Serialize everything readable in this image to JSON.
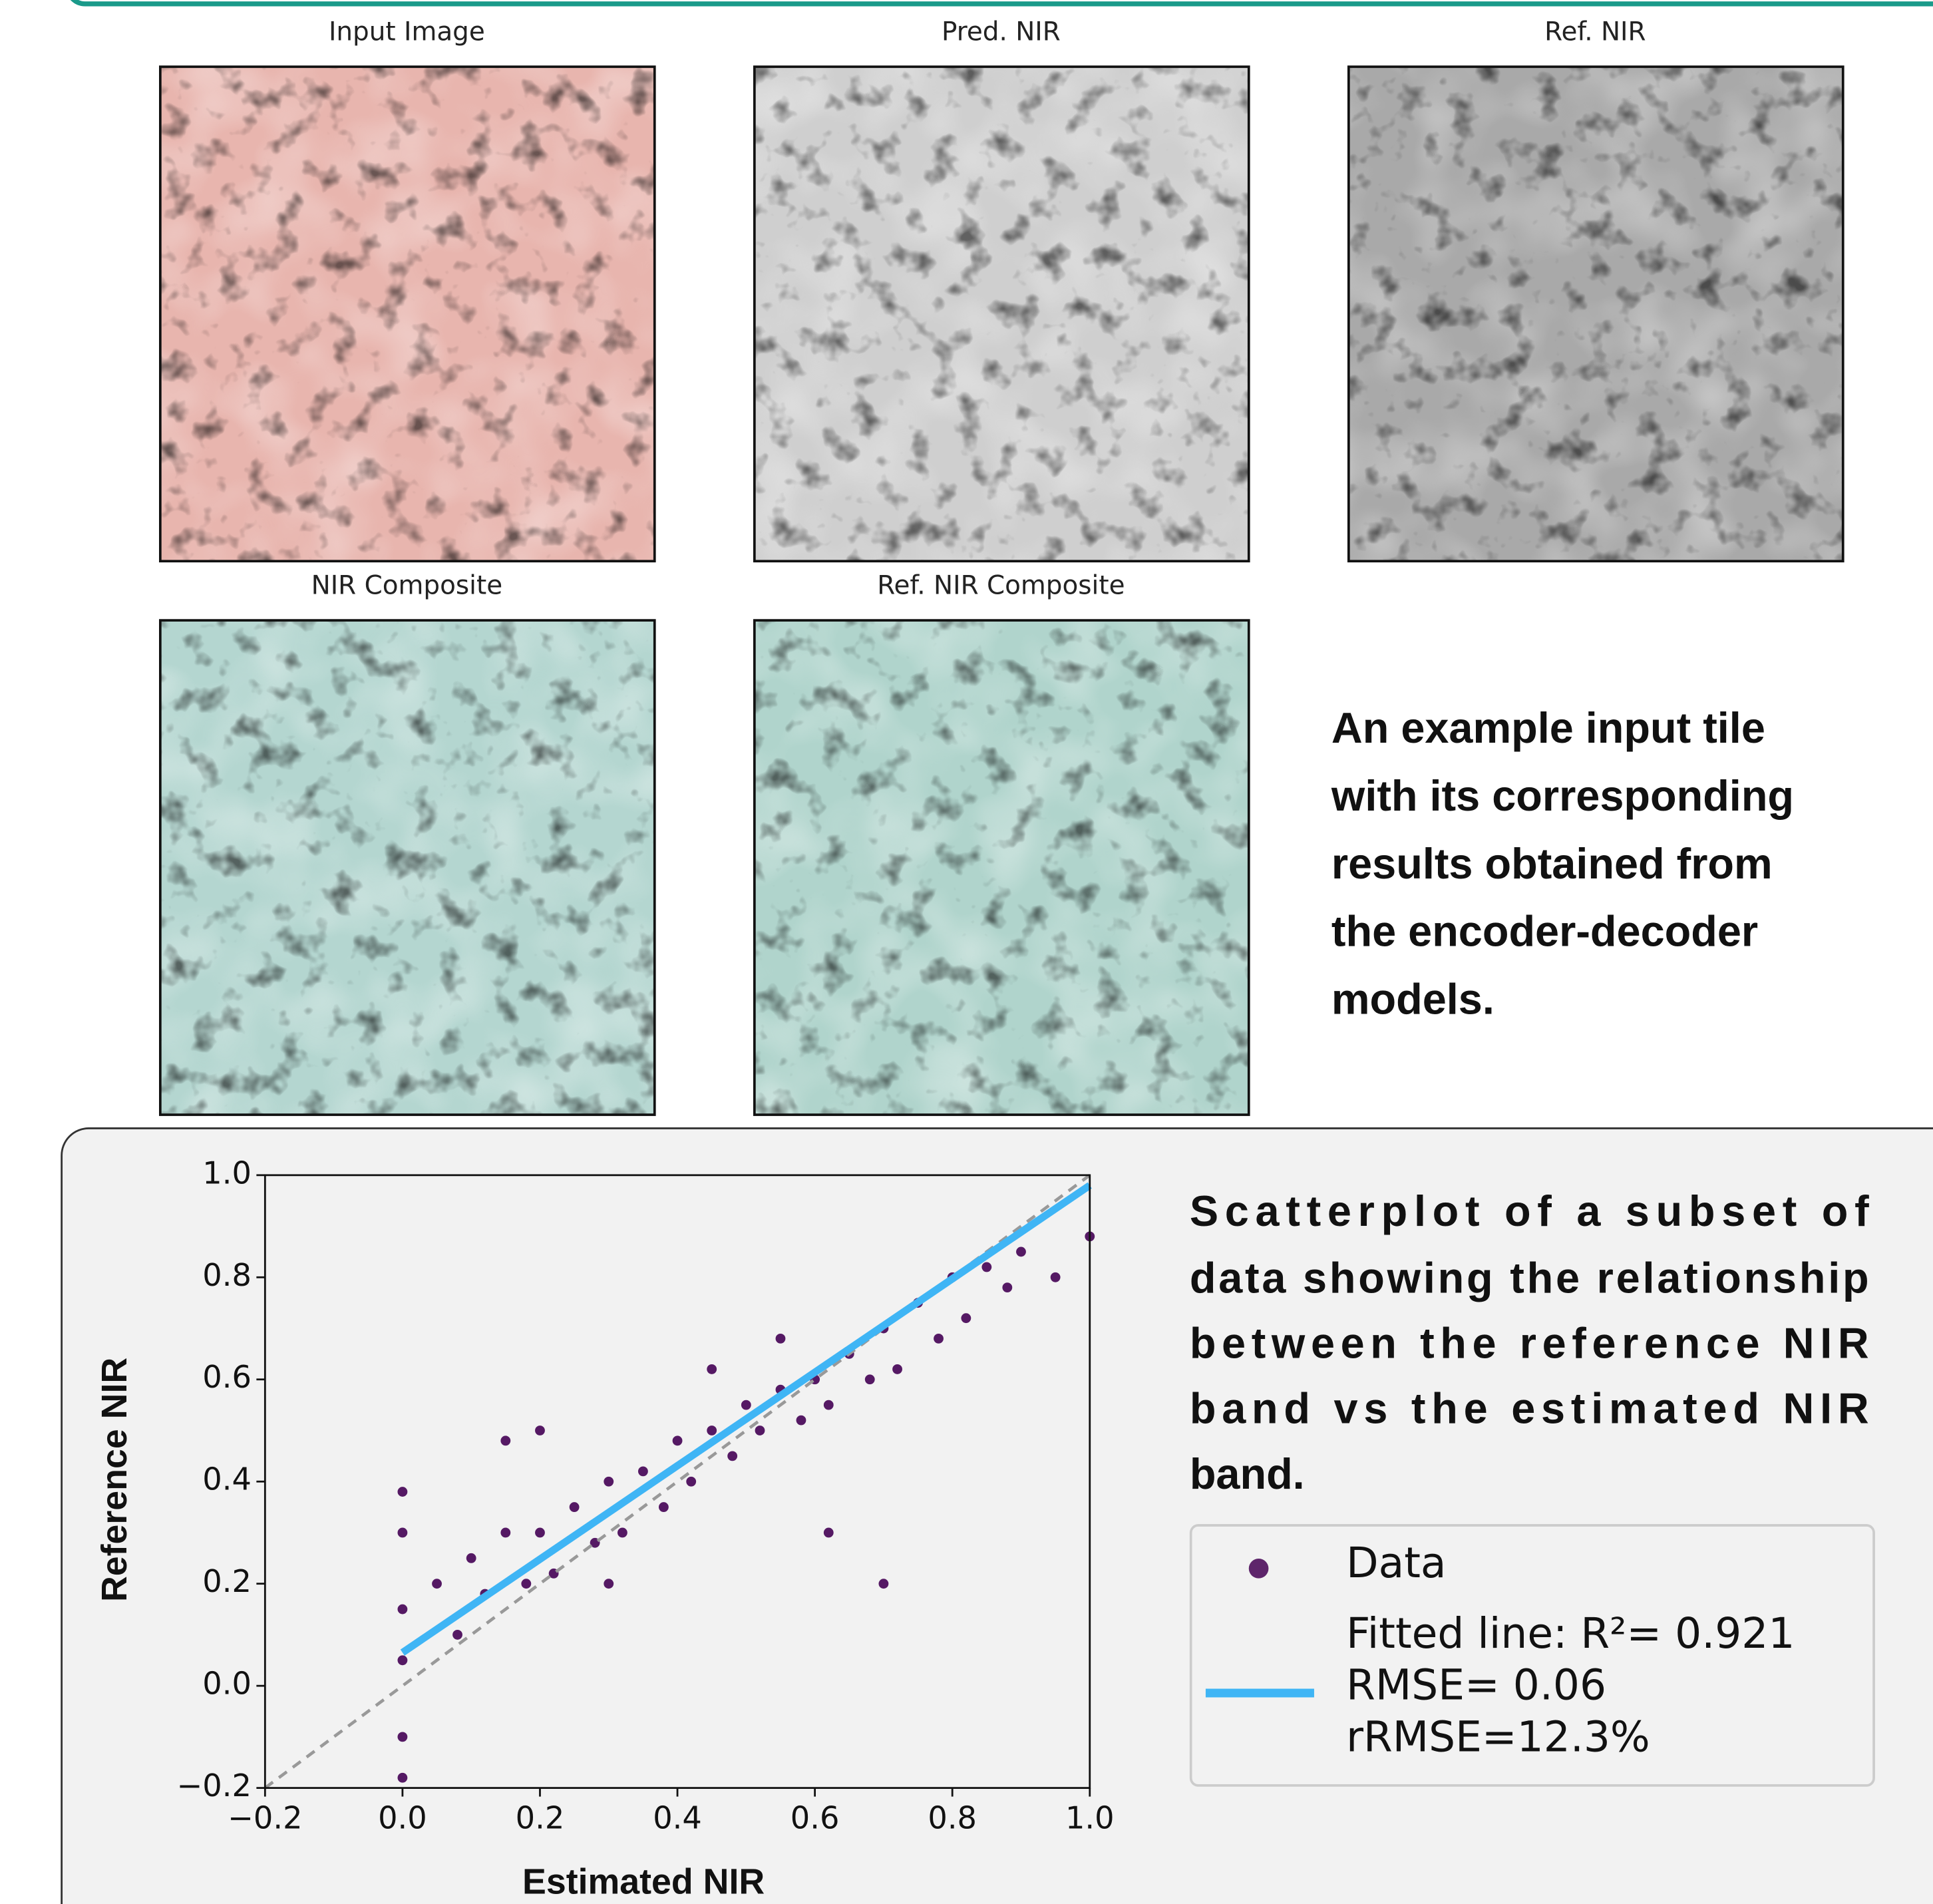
{
  "panels": [
    {
      "title": "Input Image"
    },
    {
      "title": "Pred. NIR"
    },
    {
      "title": "Ref. NIR"
    },
    {
      "title": "NIR Composite"
    },
    {
      "title": "Ref. NIR Composite"
    }
  ],
  "caption": [
    "An example input tile",
    "with its corresponding",
    "results obtained from",
    "the encoder-decoder",
    "models."
  ],
  "scatter_caption": [
    "Scatterplot of a subset of",
    "data showing the relationship",
    "between the reference NIR",
    "band vs the estimated NIR",
    "band."
  ],
  "chart_data": {
    "type": "scatter",
    "x_label": "Estimated NIR",
    "y_label": "Reference NIR",
    "xlim": [
      -0.2,
      1.0
    ],
    "ylim": [
      -0.2,
      1.0
    ],
    "xticks": [
      {
        "value": -0.2,
        "label": "−0.2"
      },
      {
        "value": 0,
        "label": "0.0"
      },
      0.2,
      0.4,
      0.6,
      0.8,
      {
        "value": 1.0,
        "label": "1.0"
      }
    ],
    "yticks": [
      {
        "value": -0.2,
        "label": "−0.2"
      },
      {
        "value": 0,
        "label": "0.0"
      },
      0.2,
      0.4,
      0.6,
      0.8,
      {
        "value": 1.0,
        "label": "1.0"
      }
    ],
    "reference_line": {
      "x": [
        -0.2,
        1.0
      ],
      "values": [
        -0.2,
        1.0
      ],
      "color": "#999999"
    },
    "series": [
      {
        "name": "Data",
        "color": "#440154",
        "x": [
          0,
          0,
          0,
          0,
          0,
          0,
          0.05,
          0.08,
          0.1,
          0.12,
          0.15,
          0.18,
          0.2,
          0.22,
          0.25,
          0.28,
          0.3,
          0.32,
          0.35,
          0.38,
          0.4,
          0.42,
          0.45,
          0.48,
          0.5,
          0.52,
          0.55,
          0.58,
          0.6,
          0.62,
          0.65,
          0.68,
          0.7,
          0.72,
          0.75,
          0.78,
          0.8,
          0.82,
          0.85,
          0.88,
          0.9,
          0.95,
          1.0,
          0.15,
          0.3,
          0.55,
          0.62,
          0.7,
          0.2,
          0.45
        ],
        "values": [
          -0.18,
          -0.1,
          0.05,
          0.15,
          0.3,
          0.38,
          0.2,
          0.1,
          0.25,
          0.18,
          0.3,
          0.2,
          0.3,
          0.22,
          0.35,
          0.28,
          0.4,
          0.3,
          0.42,
          0.35,
          0.48,
          0.4,
          0.5,
          0.45,
          0.55,
          0.5,
          0.58,
          0.52,
          0.6,
          0.55,
          0.65,
          0.6,
          0.7,
          0.62,
          0.75,
          0.68,
          0.8,
          0.72,
          0.82,
          0.78,
          0.85,
          0.8,
          0.88,
          0.48,
          0.2,
          0.68,
          0.3,
          0.2,
          0.5,
          0.62
        ]
      },
      {
        "name": [
          "Fitted line: R²= 0.921",
          "RMSE= 0.06",
          "rRMSE=12.3%"
        ],
        "color": "#3fb5f5",
        "x": [
          0,
          1.0
        ],
        "values": [
          0.065,
          0.98
        ]
      }
    ]
  }
}
